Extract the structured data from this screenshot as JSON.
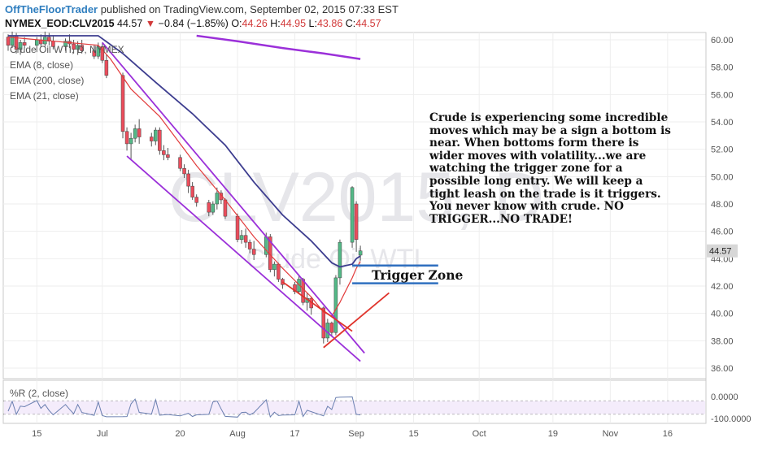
{
  "header": {
    "author": "OffTheFloorTrader",
    "published": "published on TradingView.com, September 02, 2015 07:33 EST"
  },
  "symbol_line": {
    "ticker": "NYMEX_EOD:CLV2015",
    "last": "44.57",
    "arrow": "▼",
    "change": "−0.84 (−1.85%)",
    "o_label": "O:",
    "o": "44.26",
    "h_label": "H:",
    "h": "44.95",
    "l_label": "L:",
    "l": "43.86",
    "c_label": "C:",
    "c": "44.57"
  },
  "legend": {
    "title": "Crude Oil WTI, D, NYMEX",
    "ema8": "EMA (8, close)",
    "ema200": "EMA (200, close)",
    "ema21": "EMA (21, close)"
  },
  "watermark": {
    "symbol": "CLV2015, D",
    "name": "Crude Oil WTI"
  },
  "annotation": "Crude is experiencing some incredible moves which may be a sign a bottom is near.  When bottoms form there is wider moves with volatility...we are watching the trigger zone for a possible long entry.  We will keep a tight leash on the trade is it triggers.  You never know with crude.  NO TRIGGER...NO TRADE!",
  "trigger_label": "Trigger Zone",
  "oscillator": {
    "label": "%R (2, close)",
    "ticks": [
      "0.0000",
      "-100.0000"
    ]
  },
  "colors": {
    "up": "#53b987",
    "down": "#eb4d5c",
    "ema8": "#e23b3b",
    "ema21": "#3d3d8f",
    "ema200": "#9b30d9",
    "trend": "#9b30d9",
    "trigger_line": "#2f6fbf",
    "red_line": "#e0342c",
    "last_price_bg": "#d7d7d7"
  },
  "chart_data": {
    "type": "candlestick",
    "title": "Crude Oil WTI, D, NYMEX",
    "symbol": "NYMEX_EOD:CLV2015",
    "y_axis": {
      "ticks": [
        36,
        38,
        40,
        42,
        44,
        46,
        48,
        50,
        52,
        54,
        56,
        58,
        60
      ],
      "tick_labels": [
        "36.00",
        "38.00",
        "40.00",
        "42.00",
        "44.00",
        "46.00",
        "48.00",
        "50.00",
        "52.00",
        "54.00",
        "56.00",
        "58.00",
        "60.00"
      ],
      "ylim": [
        35.0,
        60.3
      ]
    },
    "x_axis": {
      "labels": [
        "15",
        "Jul",
        "20",
        "Aug",
        "17",
        "Sep",
        "15",
        "Oct",
        "19",
        "Nov",
        "16"
      ],
      "xlim": [
        "2015-06-08",
        "2015-11-20"
      ],
      "label_dates": [
        "2015-06-15",
        "2015-07-01",
        "2015-07-20",
        "2015-08-03",
        "2015-08-17",
        "2015-09-01",
        "2015-09-15",
        "2015-10-01",
        "2015-10-19",
        "2015-11-02",
        "2015-11-16"
      ]
    },
    "candles": [
      [
        "2015-06-08",
        60.2,
        60.4,
        59.2,
        59.6
      ],
      [
        "2015-06-09",
        59.6,
        60.6,
        59.4,
        60.3
      ],
      [
        "2015-06-10",
        60.3,
        60.5,
        59.0,
        59.3
      ],
      [
        "2015-06-11",
        59.3,
        60.0,
        58.9,
        59.8
      ],
      [
        "2015-06-12",
        59.8,
        60.2,
        59.4,
        59.6
      ],
      [
        "2015-06-15",
        59.6,
        60.2,
        59.1,
        60.0
      ],
      [
        "2015-06-16",
        60.0,
        60.4,
        59.5,
        59.7
      ],
      [
        "2015-06-17",
        59.7,
        60.6,
        59.5,
        60.2
      ],
      [
        "2015-06-18",
        60.2,
        60.5,
        59.6,
        59.9
      ],
      [
        "2015-06-19",
        59.9,
        60.3,
        59.3,
        59.5
      ],
      [
        "2015-06-22",
        59.5,
        60.1,
        59.2,
        59.9
      ],
      [
        "2015-06-23",
        59.9,
        60.4,
        59.4,
        59.7
      ],
      [
        "2015-06-24",
        59.7,
        60.0,
        59.0,
        59.3
      ],
      [
        "2015-06-25",
        59.3,
        59.9,
        58.9,
        59.6
      ],
      [
        "2015-06-26",
        59.6,
        60.0,
        59.0,
        59.2
      ],
      [
        "2015-06-29",
        59.2,
        59.6,
        58.6,
        58.8
      ],
      [
        "2015-06-30",
        58.8,
        59.8,
        58.6,
        59.5
      ],
      [
        "2015-07-01",
        59.5,
        59.8,
        58.3,
        58.5
      ],
      [
        "2015-07-02",
        58.5,
        58.9,
        57.2,
        57.4
      ],
      [
        "2015-07-06",
        57.4,
        57.6,
        52.8,
        53.3
      ],
      [
        "2015-07-07",
        53.3,
        53.6,
        51.9,
        52.4
      ],
      [
        "2015-07-08",
        52.4,
        53.2,
        51.2,
        52.8
      ],
      [
        "2015-07-09",
        52.8,
        53.8,
        52.5,
        53.5
      ],
      [
        "2015-07-10",
        53.5,
        54.2,
        52.4,
        52.9
      ],
      [
        "2015-07-13",
        52.9,
        53.2,
        52.2,
        52.6
      ],
      [
        "2015-07-14",
        52.6,
        53.6,
        52.3,
        53.4
      ],
      [
        "2015-07-15",
        53.4,
        53.6,
        51.6,
        51.9
      ],
      [
        "2015-07-16",
        51.9,
        52.3,
        51.2,
        51.6
      ],
      [
        "2015-07-17",
        51.6,
        52.1,
        51.2,
        51.4
      ],
      [
        "2015-07-20",
        51.4,
        51.6,
        50.4,
        50.6
      ],
      [
        "2015-07-21",
        50.6,
        50.9,
        49.9,
        50.2
      ],
      [
        "2015-07-22",
        50.2,
        50.5,
        48.8,
        49.3
      ],
      [
        "2015-07-23",
        49.3,
        49.6,
        48.3,
        48.5
      ],
      [
        "2015-07-24",
        48.5,
        48.7,
        47.8,
        48.1
      ],
      [
        "2015-07-27",
        48.1,
        48.3,
        47.1,
        47.4
      ],
      [
        "2015-07-28",
        47.4,
        48.2,
        47.2,
        48.0
      ],
      [
        "2015-07-29",
        48.0,
        49.2,
        47.6,
        48.8
      ],
      [
        "2015-07-30",
        48.8,
        49.0,
        48.0,
        48.3
      ],
      [
        "2015-07-31",
        48.3,
        48.4,
        46.9,
        47.1
      ],
      [
        "2015-08-03",
        47.1,
        47.3,
        45.2,
        45.4
      ],
      [
        "2015-08-04",
        45.4,
        46.1,
        45.1,
        45.7
      ],
      [
        "2015-08-05",
        45.7,
        46.2,
        44.8,
        45.2
      ],
      [
        "2015-08-06",
        45.2,
        45.4,
        44.4,
        44.7
      ],
      [
        "2015-08-07",
        44.7,
        45.3,
        43.9,
        44.3
      ],
      [
        "2015-08-10",
        44.3,
        45.9,
        44.1,
        45.6
      ],
      [
        "2015-08-11",
        45.6,
        45.8,
        43.0,
        43.2
      ],
      [
        "2015-08-12",
        43.2,
        43.8,
        42.7,
        43.6
      ],
      [
        "2015-08-13",
        43.6,
        43.7,
        42.3,
        42.5
      ],
      [
        "2015-08-14",
        42.5,
        42.6,
        41.8,
        42.1
      ],
      [
        "2015-08-17",
        42.1,
        42.3,
        41.4,
        41.6
      ],
      [
        "2015-08-18",
        41.6,
        42.8,
        41.5,
        42.5
      ],
      [
        "2015-08-19",
        42.5,
        42.6,
        40.6,
        40.8
      ],
      [
        "2015-08-20",
        40.8,
        41.5,
        40.2,
        41.1
      ],
      [
        "2015-08-21",
        41.1,
        41.2,
        39.9,
        40.4
      ],
      [
        "2015-08-24",
        40.4,
        40.5,
        37.8,
        38.2
      ],
      [
        "2015-08-25",
        38.2,
        39.6,
        37.9,
        39.3
      ],
      [
        "2015-08-26",
        39.3,
        39.4,
        38.3,
        38.6
      ],
      [
        "2015-08-27",
        38.6,
        42.8,
        38.4,
        42.6
      ],
      [
        "2015-08-28",
        42.6,
        45.4,
        42.1,
        45.2
      ],
      [
        "2015-08-31",
        45.2,
        49.3,
        44.8,
        49.2
      ],
      [
        "2015-09-01",
        48.0,
        48.2,
        44.5,
        45.4
      ],
      [
        "2015-09-02",
        44.26,
        44.95,
        43.86,
        44.57
      ]
    ],
    "ema8": [
      [
        [
          "2015-06-08",
          60.2
        ],
        [
          "2015-06-30",
          59.6
        ],
        [
          "2015-07-03",
          58.6
        ],
        [
          "2015-07-08",
          56.4
        ],
        [
          "2015-07-15",
          54.4
        ],
        [
          "2015-07-24",
          50.8
        ],
        [
          "2015-07-31",
          48.3
        ],
        [
          "2015-08-07",
          45.6
        ],
        [
          "2015-08-14",
          43.3
        ],
        [
          "2015-08-21",
          41.2
        ],
        [
          "2015-08-24",
          40.1
        ],
        [
          "2015-08-26",
          39.8
        ],
        [
          "2015-08-28",
          40.8
        ],
        [
          "2015-08-31",
          42.6
        ],
        [
          "2015-09-01",
          43.3
        ],
        [
          "2015-09-02",
          43.8
        ]
      ]
    ],
    "ema21": [
      [
        "2015-06-08",
        60.3
      ],
      [
        "2015-06-30",
        60.3
      ],
      [
        "2015-07-06",
        59.0
      ],
      [
        "2015-07-14",
        56.9
      ],
      [
        "2015-07-23",
        54.6
      ],
      [
        "2015-07-31",
        52.3
      ],
      [
        "2015-08-07",
        49.6
      ],
      [
        "2015-08-14",
        47.2
      ],
      [
        "2015-08-21",
        45.3
      ],
      [
        "2015-08-26",
        43.7
      ],
      [
        "2015-08-28",
        43.4
      ],
      [
        "2015-08-31",
        43.6
      ],
      [
        "2015-09-01",
        44.0
      ],
      [
        "2015-09-02",
        44.2
      ]
    ],
    "ema200": [
      [
        "2015-07-24",
        60.3
      ],
      [
        "2015-08-03",
        59.9
      ],
      [
        "2015-08-14",
        59.4
      ],
      [
        "2015-08-24",
        59.0
      ],
      [
        "2015-09-02",
        58.6
      ]
    ],
    "trendlines": [
      {
        "color": "purple",
        "from": [
          "2015-07-01",
          59.8
        ],
        "to": [
          "2015-09-03",
          37.1
        ]
      },
      {
        "color": "purple",
        "from": [
          "2015-07-07",
          51.5
        ],
        "to": [
          "2015-09-02",
          36.5
        ]
      },
      {
        "color": "red",
        "from": [
          "2015-08-24",
          37.5
        ],
        "to": [
          "2015-09-09",
          41.5
        ]
      },
      {
        "color": "red",
        "from": [
          "2015-08-14",
          42.3
        ],
        "to": [
          "2015-08-31",
          38.7
        ]
      }
    ],
    "trigger_zone": {
      "upper": 43.5,
      "lower": 42.2,
      "from": "2015-08-31",
      "to": "2015-09-21"
    },
    "last_price": "44.57",
    "oscillator": {
      "name": "%R (2, close)",
      "range": [
        -100,
        0
      ],
      "levels": [
        -20,
        -80
      ]
    }
  }
}
